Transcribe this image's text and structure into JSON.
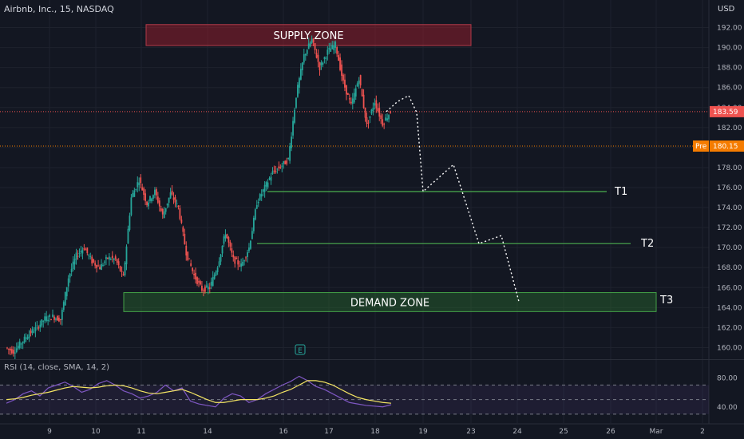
{
  "header": {
    "title": "Airbnb, Inc., 15, NASDAQ",
    "currency": "USD"
  },
  "colors": {
    "bg": "#131722",
    "up": "#26a69a",
    "down": "#ef5350",
    "grid": "#1e222d",
    "text": "#b2b5be"
  },
  "chart_data": {
    "type": "candlestick",
    "ylim": [
      159,
      193
    ],
    "y_ticks": [
      "192.00",
      "190.00",
      "188.00",
      "186.00",
      "184.00",
      "182.00",
      "180.00",
      "178.00",
      "176.00",
      "174.00",
      "172.00",
      "170.00",
      "168.00",
      "166.00",
      "164.00",
      "162.00",
      "160.00"
    ],
    "x_ticks": [
      "9",
      "10",
      "11",
      "14",
      "16",
      "17",
      "18",
      "19",
      "23",
      "24",
      "25",
      "26",
      "Mar",
      "2"
    ],
    "price_labels": [
      {
        "value": 183.59,
        "text": "183.59",
        "color": "#ef5350"
      },
      {
        "value": 180.15,
        "text": "180.15",
        "prefix": "Pre",
        "color": "#f57c00"
      }
    ],
    "zones": [
      {
        "label": "SUPPLY ZONE",
        "from": 190.2,
        "to": 192.3
      },
      {
        "label": "DEMAND ZONE",
        "from": 163.6,
        "to": 165.5
      }
    ],
    "targets": [
      {
        "label": "T1",
        "value": 175.6
      },
      {
        "label": "T2",
        "value": 170.4
      },
      {
        "label": "T3",
        "value": 164.6
      }
    ],
    "projection": [
      183.6,
      184.6,
      185.2,
      183.5,
      175.6,
      178.3,
      170.4,
      171.2,
      164.6
    ],
    "price_path": [
      160.0,
      159.6,
      160.5,
      161.4,
      162.0,
      162.9,
      163.1,
      162.8,
      167.0,
      169.2,
      170.0,
      168.6,
      168.0,
      169.0,
      168.8,
      167.0,
      175.0,
      176.8,
      174.4,
      175.6,
      173.2,
      175.4,
      174.0,
      169.5,
      167.2,
      165.8,
      166.0,
      168.2,
      171.5,
      168.8,
      168.2,
      170.0,
      174.5,
      176.0,
      177.5,
      178.1,
      178.8,
      185.2,
      189.2,
      190.8,
      188.0,
      189.6,
      190.3,
      186.5,
      184.2,
      187.0,
      182.2,
      184.6,
      182.4,
      183.59
    ],
    "rsi": {
      "label": "RSI (14, close, SMA, 14, 2)",
      "ticks": [
        "80.00",
        "40.00"
      ],
      "ylim": [
        20,
        100
      ],
      "bands": [
        70,
        30
      ],
      "rsi_values": [
        45,
        50,
        58,
        62,
        55,
        66,
        70,
        74,
        68,
        60,
        64,
        72,
        76,
        70,
        62,
        58,
        52,
        55,
        60,
        70,
        62,
        66,
        48,
        44,
        42,
        40,
        52,
        58,
        55,
        46,
        50,
        58,
        64,
        70,
        75,
        82,
        76,
        68,
        64,
        58,
        52,
        46,
        44,
        42,
        41,
        40,
        43
      ],
      "sma_values": [
        50,
        51,
        53,
        56,
        58,
        60,
        63,
        66,
        68,
        67,
        66,
        67,
        69,
        70,
        69,
        66,
        62,
        59,
        58,
        60,
        62,
        64,
        60,
        55,
        50,
        46,
        46,
        48,
        50,
        50,
        50,
        52,
        55,
        60,
        64,
        70,
        76,
        76,
        74,
        70,
        64,
        58,
        53,
        50,
        48,
        46,
        45
      ]
    }
  }
}
